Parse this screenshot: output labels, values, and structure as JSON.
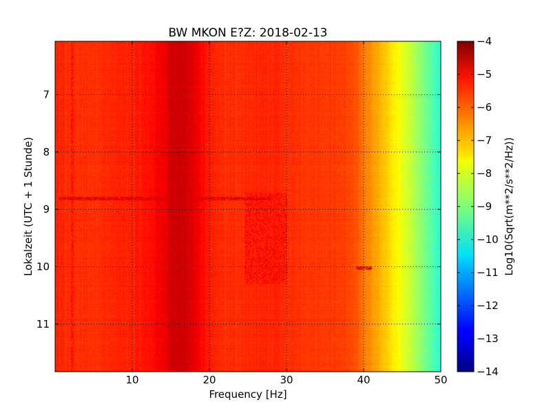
{
  "chart_data": {
    "type": "heatmap",
    "title": "BW MKON E?Z: 2018-02-13",
    "xlabel": "Frequency [Hz]",
    "ylabel": "Lokalzeit (UTC + 1 Stunde)",
    "xlim": [
      0,
      50
    ],
    "ylim": [
      6.07,
      11.83
    ],
    "y_inverted": true,
    "x_ticks": [
      10,
      20,
      30,
      40,
      50
    ],
    "x_tick_labels": [
      "10",
      "20",
      "30",
      "40",
      "50"
    ],
    "y_ticks": [
      7,
      8,
      9,
      10,
      11
    ],
    "y_tick_labels": [
      "7",
      "8",
      "9",
      "10",
      "11"
    ],
    "grid": true,
    "colormap": "jet",
    "colorbar": {
      "label": "Log10(Sqrt(m**2/s**2/Hz))",
      "range": [
        -14,
        -4
      ],
      "ticks": [
        -4,
        -5,
        -6,
        -7,
        -8,
        -9,
        -10,
        -11,
        -12,
        -13,
        -14
      ],
      "tick_labels": [
        "−4",
        "−5",
        "−6",
        "−7",
        "−8",
        "−9",
        "−10",
        "−11",
        "−12",
        "−13",
        "−14"
      ]
    },
    "spectrum_profile": {
      "frequency_hz": [
        0,
        2,
        5,
        8,
        10,
        12,
        14,
        15,
        16,
        17,
        18,
        19,
        20,
        22,
        25,
        28,
        30,
        33,
        36,
        38,
        39,
        40,
        41,
        42,
        43,
        44,
        45,
        46,
        47,
        48,
        49,
        50
      ],
      "log_psd": [
        -5.6,
        -5.7,
        -5.7,
        -5.6,
        -5.55,
        -5.4,
        -5.1,
        -4.8,
        -4.75,
        -4.8,
        -5.0,
        -5.3,
        -5.55,
        -5.7,
        -5.65,
        -5.6,
        -5.7,
        -5.75,
        -5.8,
        -5.9,
        -6.1,
        -6.4,
        -6.7,
        -7.0,
        -7.3,
        -7.6,
        -7.95,
        -8.3,
        -8.7,
        -9.1,
        -9.5,
        -9.9
      ]
    },
    "features": [
      {
        "kind": "horizontal_band",
        "time": 8.8,
        "freq_range": [
          0.5,
          28
        ],
        "log_psd": -4.9
      },
      {
        "kind": "horizontal_band",
        "time": 10.02,
        "freq_range": [
          39,
          41
        ],
        "log_psd": -4.9
      },
      {
        "kind": "patch",
        "time_range": [
          8.7,
          10.3
        ],
        "freq_range": [
          24.5,
          30
        ],
        "log_psd": -5.15
      },
      {
        "kind": "vertical_line",
        "freq": 2.2,
        "time_range": [
          6.07,
          11.83
        ],
        "log_psd": -5.2
      }
    ]
  }
}
